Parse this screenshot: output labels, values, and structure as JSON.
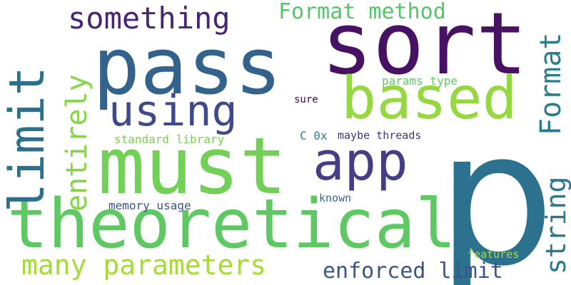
{
  "words": {
    "p": "p",
    "sort": "sort",
    "pass": "pass",
    "must": "must",
    "theoretical": "theoretical",
    "based": "based",
    "using": "using",
    "app": "app",
    "limit": "limit",
    "something": "something",
    "entirely": "entirely",
    "format_method": "Format method",
    "format": "Format",
    "string": "string",
    "many_parameters": "many parameters",
    "enforced_limit": "enforced limit",
    "memory_usage": "memory usage",
    "params_type": "params type",
    "sure": "sure",
    "standard_library": "standard library",
    "c_0x": "C 0x",
    "maybe_threads": "maybe threads",
    "known": "known",
    "features": "features"
  },
  "colors": {
    "background": "#ffffff",
    "palette": [
      "#440154",
      "#482475",
      "#3e4a89",
      "#31688e",
      "#26828e",
      "#1f9e89",
      "#35b779",
      "#6ece58",
      "#b5de2b"
    ]
  }
}
